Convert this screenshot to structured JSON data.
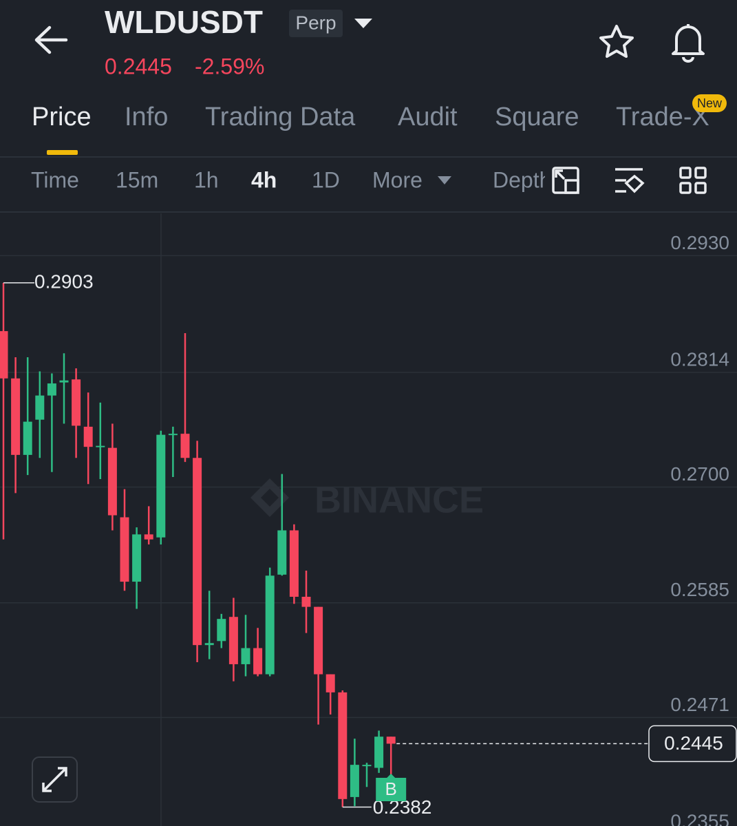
{
  "header": {
    "symbol": "WLDUSDT",
    "contract": "Perp",
    "price": "0.2445",
    "change": "-2.59%"
  },
  "tabs": [
    "Price",
    "Info",
    "Trading Data",
    "Audit",
    "Square",
    "Trade-X"
  ],
  "tab_badge": "New",
  "intervals": [
    "Time",
    "15m",
    "1h",
    "4h",
    "1D",
    "More",
    "Depth"
  ],
  "chart_data": {
    "type": "candlestick",
    "up_color": "#2ebd85",
    "down_color": "#f6465d",
    "open": [
      0.2855,
      0.2808,
      0.2732,
      0.2767,
      0.2791,
      0.2804,
      0.2807,
      0.276,
      0.274,
      0.2739,
      0.267,
      0.2606,
      0.2653,
      0.265,
      0.2752,
      0.2753,
      0.2729,
      0.2543,
      0.2547,
      0.2571,
      0.2524,
      0.254,
      0.2514,
      0.2613,
      0.2657,
      0.2591,
      0.2581,
      0.2514,
      0.2496,
      0.2392,
      0.2423,
      0.2421,
      0.2452
    ],
    "high": [
      0.2903,
      0.2829,
      0.2829,
      0.2815,
      0.2813,
      0.2833,
      0.2818,
      0.2794,
      0.2784,
      0.2763,
      0.2698,
      0.266,
      0.2681,
      0.2756,
      0.276,
      0.2853,
      0.2746,
      0.2597,
      0.2574,
      0.259,
      0.2573,
      0.256,
      0.262,
      0.2713,
      0.2663,
      0.2617,
      0.2581,
      0.2514,
      0.2498,
      0.245,
      0.2426,
      0.2458,
      0.2452
    ],
    "low": [
      0.2648,
      0.2694,
      0.2712,
      0.2729,
      0.2715,
      0.2763,
      0.2729,
      0.2703,
      0.2708,
      0.2657,
      0.2597,
      0.2579,
      0.2643,
      0.2643,
      0.271,
      0.2725,
      0.2526,
      0.2529,
      0.254,
      0.2507,
      0.2512,
      0.2512,
      0.2512,
      0.2612,
      0.2584,
      0.2555,
      0.2464,
      0.2474,
      0.2382,
      0.2383,
      0.2402,
      0.2416,
      0.2399
    ],
    "close": [
      0.2808,
      0.2732,
      0.2765,
      0.2791,
      0.2803,
      0.2806,
      0.2761,
      0.274,
      0.2741,
      0.2672,
      0.2606,
      0.2653,
      0.2648,
      0.2752,
      0.2753,
      0.2729,
      0.2543,
      0.2545,
      0.2569,
      0.2524,
      0.254,
      0.2514,
      0.2612,
      0.2657,
      0.2591,
      0.2581,
      0.2514,
      0.2496,
      0.239,
      0.2424,
      0.2424,
      0.2452,
      0.2445
    ],
    "ylim": [
      0.2355,
      0.2972
    ],
    "yticks": [
      {
        "value": 0.293,
        "label": "0.2930"
      },
      0.2814,
      {
        "value": 0.27,
        "label": "0.2700"
      },
      0.2585,
      0.2471,
      0.2355
    ],
    "grid": true,
    "watermark": "BINANCE",
    "signal_marker": "B"
  }
}
